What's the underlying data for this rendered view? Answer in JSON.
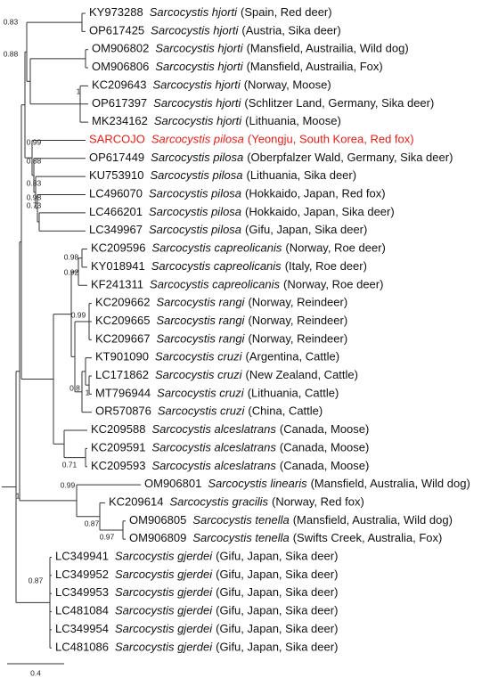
{
  "leaves": [
    {
      "accession": "KY973288",
      "species": "Sarcocystis hjorti",
      "info": "(Spain, Red deer)"
    },
    {
      "accession": "OP617425",
      "species": "Sarcocystis hjorti",
      "info": "(Austria, Sika deer)"
    },
    {
      "accession": "OM906802",
      "species": "Sarcocystis hjorti",
      "info": "(Mansfield, Austrailia, Wild dog)"
    },
    {
      "accession": "OM906806",
      "species": "Sarcocystis hjorti",
      "info": "(Mansfield, Austrailia, Fox)"
    },
    {
      "accession": "KC209643",
      "species": "Sarcocystis hjorti",
      "info": "(Norway, Moose)"
    },
    {
      "accession": "OP617397",
      "species": "Sarcocystis hjorti",
      "info": "(Schlitzer Land, Germany, Sika deer)"
    },
    {
      "accession": "MK234162",
      "species": "Sarcocystis hjorti",
      "info": "(Lithuania, Moose)"
    },
    {
      "accession": "SARCOJO",
      "species": "Sarcocystis pilosa",
      "info": "(Yeongju, South Korea, Red fox)"
    },
    {
      "accession": "OP617449",
      "species": "Sarcocystis pilosa",
      "info": "(Oberpfalzer Wald, Germany, Sika deer)"
    },
    {
      "accession": "KU753910",
      "species": "Sarcocystis pilosa",
      "info": "(Lithuania, Sika deer)"
    },
    {
      "accession": "LC496070",
      "species": "Sarcocystis pilosa",
      "info": "(Hokkaido, Japan, Red fox)"
    },
    {
      "accession": "LC466201",
      "species": "Sarcocystis pilosa",
      "info": "(Hokkaido, Japan, Sika deer)"
    },
    {
      "accession": "LC349967",
      "species": "Sarcocystis pilosa",
      "info": "(Gifu, Japan, Sika deer)"
    },
    {
      "accession": "KC209596",
      "species": "Sarcocystis capreolicanis",
      "info": "(Norway, Roe deer)"
    },
    {
      "accession": "KY018941",
      "species": "Sarcocystis capreolicanis",
      "info": "(Italy, Roe deer)"
    },
    {
      "accession": "KF241311",
      "species": "Sarcocystis capreolicanis",
      "info": "(Norway, Roe deer)"
    },
    {
      "accession": "KC209662",
      "species": "Sarcocystis rangi",
      "info": "(Norway, Reindeer)"
    },
    {
      "accession": "KC209665",
      "species": "Sarcocystis rangi",
      "info": "(Norway, Reindeer)"
    },
    {
      "accession": "KC209667",
      "species": "Sarcocystis rangi",
      "info": "(Norway, Reindeer)"
    },
    {
      "accession": "KT901090",
      "species": "Sarcocystis cruzi",
      "info": "(Argentina, Cattle)"
    },
    {
      "accession": "LC171862",
      "species": "Sarcocystis cruzi",
      "info": "(New Zealand, Cattle)"
    },
    {
      "accession": "MT796944",
      "species": "Sarcocystis cruzi",
      "info": "(Lithuania, Cattle)"
    },
    {
      "accession": "OR570876",
      "species": "Sarcocystis cruzi",
      "info": "(China, Cattle)"
    },
    {
      "accession": "KC209588",
      "species": "Sarcocystis alceslatrans",
      "info": "(Canada, Moose)"
    },
    {
      "accession": "KC209591",
      "species": "Sarcocystis alceslatrans",
      "info": "(Canada, Moose)"
    },
    {
      "accession": "KC209593",
      "species": "Sarcocystis alceslatrans",
      "info": "(Canada, Moose)"
    },
    {
      "accession": "OM906801",
      "species": "Sarcocystis linearis",
      "info": "(Mansfield, Australia, Wild dog)"
    },
    {
      "accession": "KC209614",
      "species": "Sarcocystis gracilis",
      "info": "(Norway, Red fox)"
    },
    {
      "accession": "OM906805",
      "species": "Sarcocystis tenella",
      "info": "(Mansfield, Australia, Wild dog)"
    },
    {
      "accession": "OM906809",
      "species": "Sarcocystis tenella",
      "info": "(Swifts Creek, Australia, Fox)"
    },
    {
      "accession": "LC349941",
      "species": "Sarcocystis gjerdei",
      "info": "(Gifu, Japan, Sika deer)"
    },
    {
      "accession": "LC349952",
      "species": "Sarcocystis gjerdei",
      "info": "(Gifu, Japan, Sika deer)"
    },
    {
      "accession": "LC349953",
      "species": "Sarcocystis gjerdei",
      "info": "(Gifu, Japan, Sika deer)"
    },
    {
      "accession": "LC481084",
      "species": "Sarcocystis gjerdei",
      "info": "(Gifu, Japan, Sika deer)"
    },
    {
      "accession": "LC349954",
      "species": "Sarcocystis gjerdei",
      "info": "(Gifu, Japan, Sika deer)"
    },
    {
      "accession": "LC481086",
      "species": "Sarcocystis gjerdei",
      "info": "(Gifu, Japan, Sika deer)"
    }
  ],
  "supports": [
    0.83,
    0.88,
    1,
    0.99,
    0.88,
    0.83,
    0.98,
    0.73,
    0.98,
    0.92,
    0.99,
    0.8,
    1,
    0.71,
    0.99,
    1,
    0.87,
    0.97,
    0.87
  ],
  "scale_bar": 0.4
}
